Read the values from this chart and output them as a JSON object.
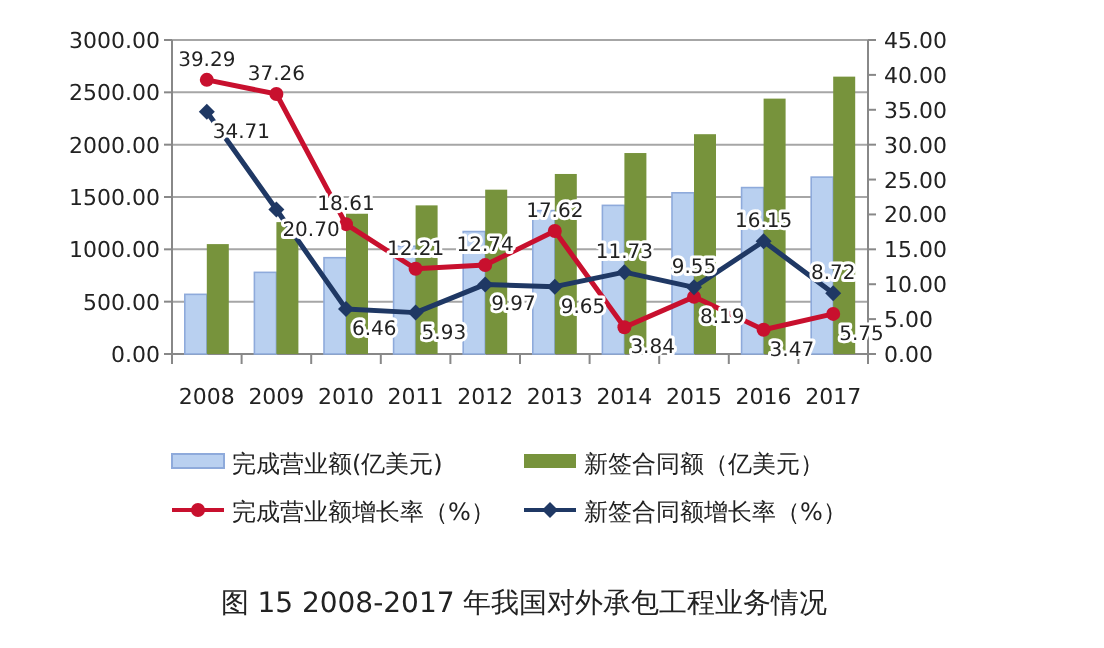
{
  "chart_data": {
    "type": "bar",
    "title": "图 15 2008-2017 年我国对外承包工程业务情况",
    "categories": [
      "2008",
      "2009",
      "2010",
      "2011",
      "2012",
      "2013",
      "2014",
      "2015",
      "2016",
      "2017"
    ],
    "series": [
      {
        "name": "完成营业额(亿美元)",
        "color": "#b9d0f0",
        "values": [
          570,
          780,
          920,
          1030,
          1170,
          1370,
          1420,
          1540,
          1590,
          1690
        ]
      },
      {
        "name": "新签合同额（亿美元）",
        "color": "#77933c",
        "values": [
          1050,
          1260,
          1340,
          1420,
          1570,
          1720,
          1920,
          2100,
          2440,
          2650
        ]
      },
      {
        "name": "完成营业额增长率（%）",
        "type": "line",
        "axis": "y2",
        "marker": "circle",
        "color": "#c8102e",
        "values": [
          39.29,
          37.26,
          18.61,
          12.21,
          12.74,
          17.62,
          3.84,
          8.19,
          3.47,
          5.75
        ],
        "value_labels": [
          "39.29",
          "37.26",
          "18.61",
          "12.21",
          "12.74",
          "17.62",
          "3.84",
          "8.19",
          "3.47",
          "5.75"
        ]
      },
      {
        "name": "新签合同额增长率（%）",
        "type": "line",
        "axis": "y2",
        "marker": "diamond",
        "color": "#1f3864",
        "values": [
          34.71,
          20.7,
          6.46,
          5.93,
          9.97,
          9.65,
          11.73,
          9.55,
          16.15,
          8.72
        ],
        "value_labels": [
          "34.71",
          "20.70",
          "6.46",
          "5.93",
          "9.97",
          "9.65",
          "11.73",
          "9.55",
          "16.15",
          "8.72"
        ]
      }
    ],
    "ylim": [
      0,
      3000
    ],
    "yticks": [
      {
        "value": 0,
        "label": "0.00"
      },
      {
        "value": 500,
        "label": "500.00"
      },
      {
        "value": 1000,
        "label": "1000.00"
      },
      {
        "value": 1500,
        "label": "1500.00"
      },
      {
        "value": 2000,
        "label": "2000.00"
      },
      {
        "value": 2500,
        "label": "2500.00"
      },
      {
        "value": 3000,
        "label": "3000.00"
      }
    ],
    "y2lim": [
      0,
      45
    ],
    "y2ticks": [
      {
        "value": 0,
        "label": "0.00"
      },
      {
        "value": 5,
        "label": "5.00"
      },
      {
        "value": 10,
        "label": "10.00"
      },
      {
        "value": 15,
        "label": "15.00"
      },
      {
        "value": 20,
        "label": "20.00"
      },
      {
        "value": 25,
        "label": "25.00"
      },
      {
        "value": 30,
        "label": "30.00"
      },
      {
        "value": 35,
        "label": "35.00"
      },
      {
        "value": 40,
        "label": "40.00"
      },
      {
        "value": 45,
        "label": "45.00"
      }
    ],
    "grid": "y",
    "legend": "bottom"
  }
}
